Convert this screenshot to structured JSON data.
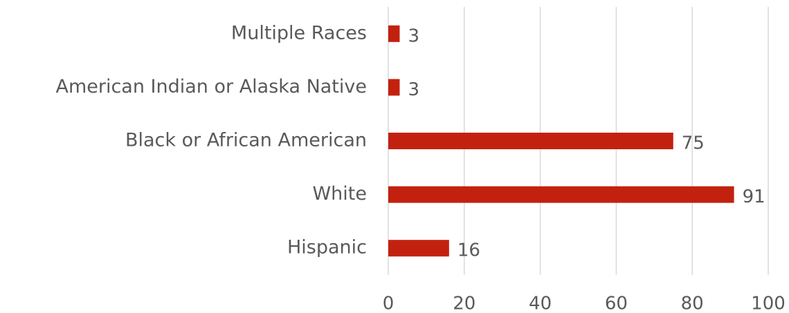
{
  "chart_data": {
    "type": "bar",
    "orientation": "horizontal",
    "categories": [
      "Multiple Races",
      "American Indian or Alaska Native",
      "Black or African American",
      "White",
      "Hispanic"
    ],
    "values": [
      3,
      3,
      75,
      91,
      16
    ],
    "color": "#c3210f",
    "xlim": [
      0,
      100
    ],
    "xticks": [
      0,
      20,
      40,
      60,
      80,
      100
    ],
    "grid": true
  }
}
